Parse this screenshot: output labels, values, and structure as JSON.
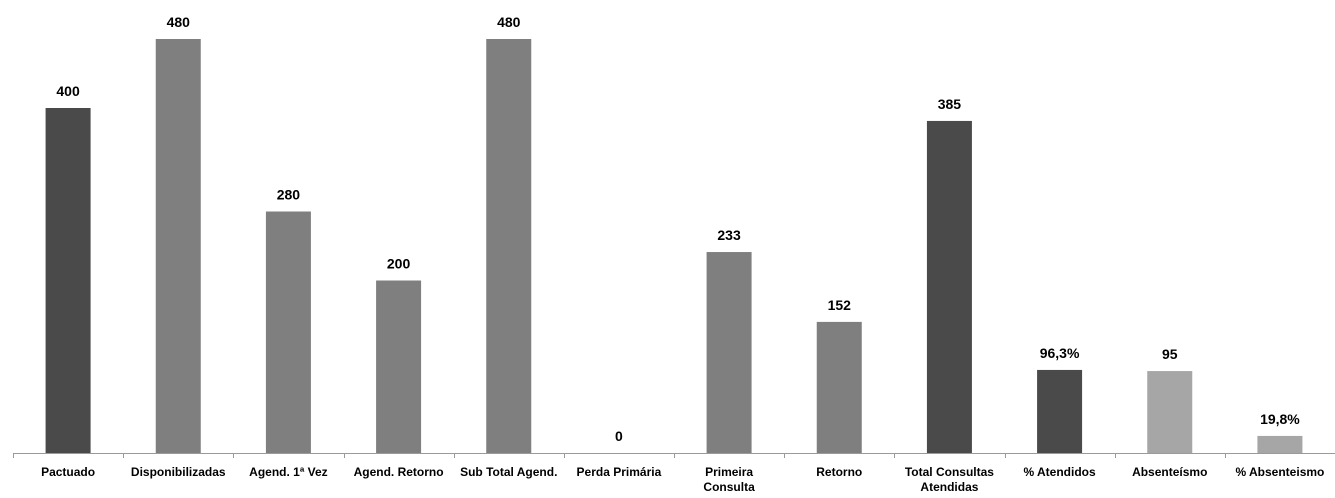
{
  "chart_data": {
    "type": "bar",
    "title": "",
    "xlabel": "",
    "ylabel": "",
    "ylim": [
      0,
      480
    ],
    "grid": false,
    "legend": "none",
    "colors": {
      "dark": "#4a4a4a",
      "medium": "#7f7f7f",
      "light": "#a6a6a6"
    },
    "bars": [
      {
        "category": "Pactuado",
        "lines": [
          "Pactuado"
        ],
        "value": 400,
        "label": "400",
        "color": "#4a4a4a"
      },
      {
        "category": "Disponibilizadas",
        "lines": [
          "Disponibilizadas"
        ],
        "value": 480,
        "label": "480",
        "color": "#7f7f7f"
      },
      {
        "category": "Agend. 1ª Vez",
        "lines": [
          "Agend. 1ª Vez"
        ],
        "value": 280,
        "label": "280",
        "color": "#7f7f7f"
      },
      {
        "category": "Agend. Retorno",
        "lines": [
          "Agend. Retorno"
        ],
        "value": 200,
        "label": "200",
        "color": "#7f7f7f"
      },
      {
        "category": "Sub Total Agend.",
        "lines": [
          "Sub Total Agend."
        ],
        "value": 480,
        "label": "480",
        "color": "#7f7f7f"
      },
      {
        "category": "Perda Primária",
        "lines": [
          "Perda Primária"
        ],
        "value": 0,
        "label": "0",
        "color": "#7f7f7f"
      },
      {
        "category": "Primeira Consulta",
        "lines": [
          "Primeira",
          "Consulta"
        ],
        "value": 233,
        "label": "233",
        "color": "#7f7f7f"
      },
      {
        "category": "Retorno",
        "lines": [
          "Retorno"
        ],
        "value": 152,
        "label": "152",
        "color": "#7f7f7f"
      },
      {
        "category": "Total Consultas Atendidas",
        "lines": [
          "Total Consultas",
          "Atendidas"
        ],
        "value": 385,
        "label": "385",
        "color": "#4a4a4a"
      },
      {
        "category": "% Atendidos",
        "lines": [
          "% Atendidos"
        ],
        "value": 96.3,
        "label": "96,3%",
        "color": "#4a4a4a"
      },
      {
        "category": "Absenteísmo",
        "lines": [
          "Absenteísmo"
        ],
        "value": 95,
        "label": "95",
        "color": "#a6a6a6"
      },
      {
        "category": "% Absenteismo",
        "lines": [
          "% Absenteismo"
        ],
        "value": 19.8,
        "label": "19,8%",
        "color": "#a6a6a6"
      }
    ]
  }
}
